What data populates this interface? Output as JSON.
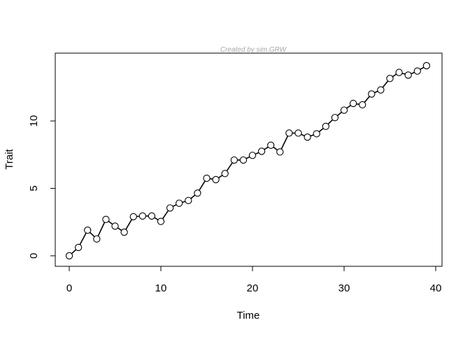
{
  "chart_data": {
    "type": "line",
    "title": "Created by sim.GRW",
    "xlabel": "Time",
    "ylabel": "Trait",
    "xlim": [
      -1.53,
      40.69
    ],
    "ylim": [
      -0.78,
      15.03
    ],
    "xticks": [
      0,
      10,
      20,
      30,
      40
    ],
    "yticks": [
      0,
      5,
      10
    ],
    "grid": false,
    "marker": "open-circle",
    "colors": {
      "line": "#000000",
      "marker_fill": "#ffffff",
      "title": "#a6a6a6"
    },
    "x": [
      0,
      1,
      2,
      3,
      4,
      5,
      6,
      7,
      8,
      9,
      10,
      11,
      12,
      13,
      14,
      15,
      16,
      17,
      18,
      19,
      20,
      21,
      22,
      23,
      24,
      25,
      26,
      27,
      28,
      29,
      30,
      31,
      32,
      33,
      34,
      35,
      36,
      37,
      38,
      39
    ],
    "y": [
      0,
      0.62,
      1.9,
      1.25,
      2.7,
      2.2,
      1.75,
      2.9,
      2.95,
      2.95,
      2.55,
      3.55,
      3.9,
      4.1,
      4.65,
      5.75,
      5.65,
      6.1,
      7.1,
      7.1,
      7.45,
      7.75,
      8.2,
      7.7,
      9.1,
      9.1,
      8.8,
      9.05,
      9.6,
      10.25,
      10.8,
      11.3,
      11.2,
      12.0,
      12.3,
      13.15,
      13.6,
      13.4,
      13.7,
      14.1
    ]
  }
}
